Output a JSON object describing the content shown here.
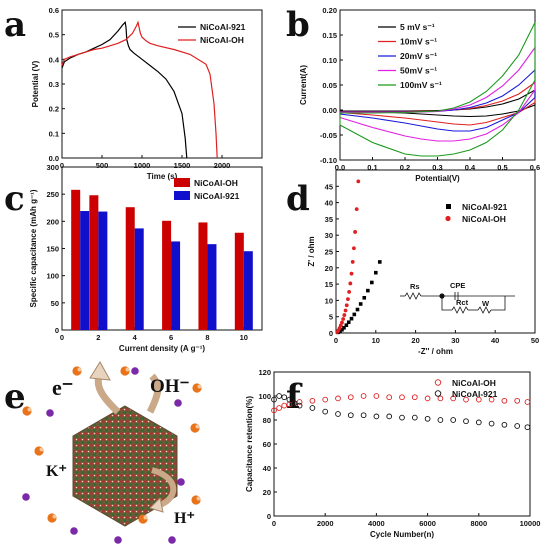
{
  "chart_data": [
    {
      "panel": "a",
      "type": "line",
      "xlabel": "Time (s)",
      "ylabel": "Potential (V)",
      "xlim": [
        0,
        2500
      ],
      "ylim": [
        0,
        0.6
      ],
      "xticks": [
        0,
        500,
        1000,
        1500,
        2000
      ],
      "yticks": [
        0.0,
        0.1,
        0.2,
        0.3,
        0.4,
        0.5,
        0.6
      ],
      "legend_position": "top-right",
      "series": [
        {
          "name": "NiCoAl-921",
          "color": "#000000",
          "x": [
            0,
            30,
            100,
            200,
            300,
            400,
            500,
            600,
            700,
            760,
            790,
            800,
            810,
            830,
            850,
            900,
            1000,
            1100,
            1200,
            1300,
            1400,
            1500,
            1540,
            1560
          ],
          "y": [
            0.365,
            0.39,
            0.405,
            0.42,
            0.43,
            0.445,
            0.46,
            0.48,
            0.515,
            0.54,
            0.55,
            0.53,
            0.48,
            0.455,
            0.44,
            0.425,
            0.4,
            0.375,
            0.35,
            0.32,
            0.27,
            0.18,
            0.08,
            0.0
          ]
        },
        {
          "name": "NiCoAl-OH",
          "color": "#e02020",
          "x": [
            0,
            30,
            100,
            200,
            300,
            400,
            500,
            600,
            700,
            800,
            880,
            930,
            950,
            960,
            980,
            1000,
            1050,
            1100,
            1200,
            1400,
            1600,
            1800,
            1850,
            1900,
            1925,
            1940
          ],
          "y": [
            0.375,
            0.4,
            0.41,
            0.42,
            0.43,
            0.44,
            0.445,
            0.455,
            0.465,
            0.48,
            0.505,
            0.535,
            0.55,
            0.535,
            0.505,
            0.49,
            0.475,
            0.465,
            0.455,
            0.44,
            0.42,
            0.38,
            0.34,
            0.22,
            0.1,
            0.0
          ]
        }
      ]
    },
    {
      "panel": "b",
      "type": "line",
      "xlabel": "Potential(V)",
      "ylabel": "Current(A)",
      "xlim": [
        0,
        0.6
      ],
      "ylim": [
        -0.1,
        0.2
      ],
      "xticks": [
        0.0,
        0.1,
        0.2,
        0.3,
        0.4,
        0.5,
        0.6
      ],
      "yticks": [
        -0.1,
        -0.05,
        0.0,
        0.05,
        0.1,
        0.15,
        0.2
      ],
      "xtick_labels": [
        "0.0",
        "0.1",
        "0.2",
        "0.3",
        "0.4",
        "0.5",
        "0.6"
      ],
      "ytick_labels": [
        "-0.10",
        "-0.05",
        "0.00",
        "0.05",
        "0.10",
        "0.15",
        "0.20"
      ],
      "legend_position": "top-left",
      "series": [
        {
          "name": "5 mV s⁻¹",
          "color": "#000000",
          "x": [
            0,
            0.1,
            0.2,
            0.3,
            0.35,
            0.4,
            0.45,
            0.5,
            0.55,
            0.6,
            0.6,
            0.55,
            0.5,
            0.45,
            0.4,
            0.35,
            0.3,
            0.25,
            0.2,
            0.1,
            0
          ],
          "y": [
            -0.002,
            -0.002,
            -0.002,
            -0.001,
            0.0,
            0.002,
            0.006,
            0.012,
            0.022,
            0.04,
            0.01,
            -0.002,
            -0.008,
            -0.012,
            -0.013,
            -0.012,
            -0.01,
            -0.008,
            -0.006,
            -0.004,
            -0.002
          ]
        },
        {
          "name": "10mV s⁻¹",
          "color": "#e02020",
          "x": [
            0,
            0.1,
            0.2,
            0.3,
            0.35,
            0.4,
            0.45,
            0.5,
            0.55,
            0.6,
            0.6,
            0.55,
            0.5,
            0.45,
            0.4,
            0.35,
            0.3,
            0.25,
            0.2,
            0.1,
            0
          ],
          "y": [
            -0.003,
            -0.003,
            -0.003,
            -0.002,
            0.0,
            0.003,
            0.009,
            0.018,
            0.032,
            0.055,
            0.015,
            -0.005,
            -0.015,
            -0.025,
            -0.03,
            -0.028,
            -0.024,
            -0.02,
            -0.016,
            -0.01,
            -0.005
          ]
        },
        {
          "name": "20mV s⁻¹",
          "color": "#1a1adc",
          "x": [
            0,
            0.1,
            0.2,
            0.3,
            0.35,
            0.4,
            0.45,
            0.5,
            0.55,
            0.6,
            0.6,
            0.55,
            0.5,
            0.45,
            0.4,
            0.35,
            0.3,
            0.25,
            0.2,
            0.1,
            0
          ],
          "y": [
            -0.004,
            -0.004,
            -0.004,
            -0.003,
            0.0,
            0.005,
            0.014,
            0.028,
            0.05,
            0.08,
            0.025,
            -0.005,
            -0.02,
            -0.035,
            -0.042,
            -0.042,
            -0.038,
            -0.032,
            -0.026,
            -0.016,
            -0.008
          ]
        },
        {
          "name": "50mV s⁻¹",
          "color": "#e020e0",
          "x": [
            0,
            0.1,
            0.2,
            0.3,
            0.35,
            0.4,
            0.45,
            0.5,
            0.55,
            0.6,
            0.6,
            0.55,
            0.5,
            0.45,
            0.4,
            0.35,
            0.3,
            0.25,
            0.2,
            0.1,
            0
          ],
          "y": [
            -0.005,
            -0.005,
            -0.005,
            -0.003,
            0.002,
            0.01,
            0.025,
            0.048,
            0.08,
            0.125,
            0.04,
            -0.005,
            -0.03,
            -0.048,
            -0.058,
            -0.062,
            -0.062,
            -0.058,
            -0.052,
            -0.035,
            -0.015
          ]
        },
        {
          "name": "100mV s⁻¹",
          "color": "#1a9a1a",
          "x": [
            0,
            0.1,
            0.2,
            0.3,
            0.35,
            0.4,
            0.45,
            0.5,
            0.55,
            0.6,
            0.6,
            0.55,
            0.5,
            0.45,
            0.4,
            0.35,
            0.3,
            0.25,
            0.2,
            0.1,
            0
          ],
          "y": [
            -0.006,
            -0.006,
            -0.005,
            -0.002,
            0.004,
            0.016,
            0.037,
            0.068,
            0.11,
            0.175,
            0.06,
            0.0,
            -0.04,
            -0.065,
            -0.08,
            -0.088,
            -0.092,
            -0.092,
            -0.088,
            -0.065,
            -0.03
          ]
        }
      ]
    },
    {
      "panel": "c",
      "type": "bar",
      "xlabel": "Current density (A g⁻¹)",
      "ylabel": "Specific capacitance (mAh g⁻¹)",
      "categories": [
        "1",
        "2",
        "4",
        "6",
        "8",
        "10"
      ],
      "xtick_labels": [
        "0",
        "2",
        "4",
        "6",
        "8",
        "10"
      ],
      "ylim": [
        0,
        300
      ],
      "yticks": [
        0,
        50,
        100,
        150,
        200,
        250,
        300
      ],
      "legend_position": "top-right",
      "series": [
        {
          "name": "NiCoAl-OH",
          "color": "#cc0000",
          "values": [
            258,
            248,
            226,
            201,
            198,
            179
          ]
        },
        {
          "name": "NiCoAl-921",
          "color": "#1010cc",
          "values": [
            219,
            218,
            187,
            163,
            158,
            145
          ]
        }
      ]
    },
    {
      "panel": "d",
      "type": "scatter",
      "xlabel": "-Z'' / ohm",
      "ylabel": "Z' / ohm",
      "xlim": [
        0,
        50
      ],
      "ylim": [
        0,
        50
      ],
      "xticks": [
        0,
        10,
        20,
        30,
        40,
        50
      ],
      "yticks": [
        0,
        5,
        10,
        15,
        20,
        25,
        30,
        35,
        40,
        45
      ],
      "legend_position": "top-right",
      "circuit_labels": [
        "Rs",
        "CPE",
        "Rct",
        "W"
      ],
      "series": [
        {
          "name": "NiCoAl-921",
          "color": "#000000",
          "marker": "square",
          "x": [
            0.5,
            1.0,
            1.5,
            2.0,
            2.6,
            3.2,
            3.9,
            4.6,
            5.4,
            6.2,
            7.1,
            8.0,
            9.0,
            10.0,
            11.0
          ],
          "y": [
            0.2,
            0.5,
            1.0,
            1.6,
            2.4,
            3.3,
            4.4,
            5.7,
            7.2,
            8.9,
            10.8,
            13.0,
            15.5,
            18.5,
            21.8
          ]
        },
        {
          "name": "NiCoAl-OH",
          "color": "#e02020",
          "marker": "circle",
          "x": [
            0.3,
            0.6,
            0.9,
            1.2,
            1.5,
            1.8,
            2.1,
            2.4,
            2.7,
            3.0,
            3.3,
            3.6,
            3.9,
            4.2,
            4.5,
            4.8,
            5.2,
            5.6
          ],
          "y": [
            0.3,
            0.8,
            1.5,
            2.3,
            3.2,
            4.3,
            5.5,
            6.9,
            8.5,
            10.4,
            12.6,
            15.2,
            18.2,
            21.8,
            26.0,
            31.0,
            38.0,
            46.5
          ]
        }
      ]
    },
    {
      "panel": "f",
      "type": "scatter",
      "xlabel": "Cycle Number(n)",
      "ylabel": "Capacitance retention(%)",
      "xlim": [
        0,
        10000
      ],
      "ylim": [
        0,
        120
      ],
      "xticks": [
        0,
        2000,
        4000,
        6000,
        8000,
        10000
      ],
      "yticks": [
        0,
        20,
        40,
        60,
        80,
        100,
        120
      ],
      "legend_position": "top-right",
      "series": [
        {
          "name": "NiCoAl-OH",
          "color": "#e02020",
          "marker": "open-circle",
          "x": [
            0,
            200,
            400,
            600,
            800,
            1000,
            1500,
            2000,
            2500,
            3000,
            3500,
            4000,
            4500,
            5000,
            5500,
            6000,
            6500,
            7000,
            7500,
            8000,
            8500,
            9000,
            9500,
            9900
          ],
          "y": [
            88,
            90,
            92,
            93,
            94,
            95,
            96,
            97,
            98,
            99,
            100,
            100,
            99,
            99,
            99,
            98,
            98,
            98,
            97,
            97,
            97,
            96,
            96,
            95
          ]
        },
        {
          "name": "NiCoAl-921",
          "color": "#111111",
          "marker": "open-circle",
          "x": [
            0,
            200,
            400,
            600,
            800,
            1000,
            1500,
            2000,
            2500,
            3000,
            3500,
            4000,
            4500,
            5000,
            5500,
            6000,
            6500,
            7000,
            7500,
            8000,
            8500,
            9000,
            9500,
            9900
          ],
          "y": [
            97,
            100,
            99,
            97,
            94,
            92,
            90,
            87,
            85,
            84,
            84,
            83,
            83,
            82,
            82,
            81,
            80,
            80,
            79,
            78,
            77,
            76,
            75,
            74
          ]
        }
      ]
    }
  ],
  "panel_labels": [
    "a",
    "b",
    "c",
    "d",
    "e",
    "f"
  ],
  "schematic": {
    "ions": [
      "e⁻",
      "OH⁻",
      "K⁺",
      "H⁺"
    ],
    "colors": {
      "orange_ion": "#e8731a",
      "purple_ion": "#7a2aa8",
      "crystal_red": "#b4302a",
      "crystal_green": "#2f6b2a"
    }
  }
}
